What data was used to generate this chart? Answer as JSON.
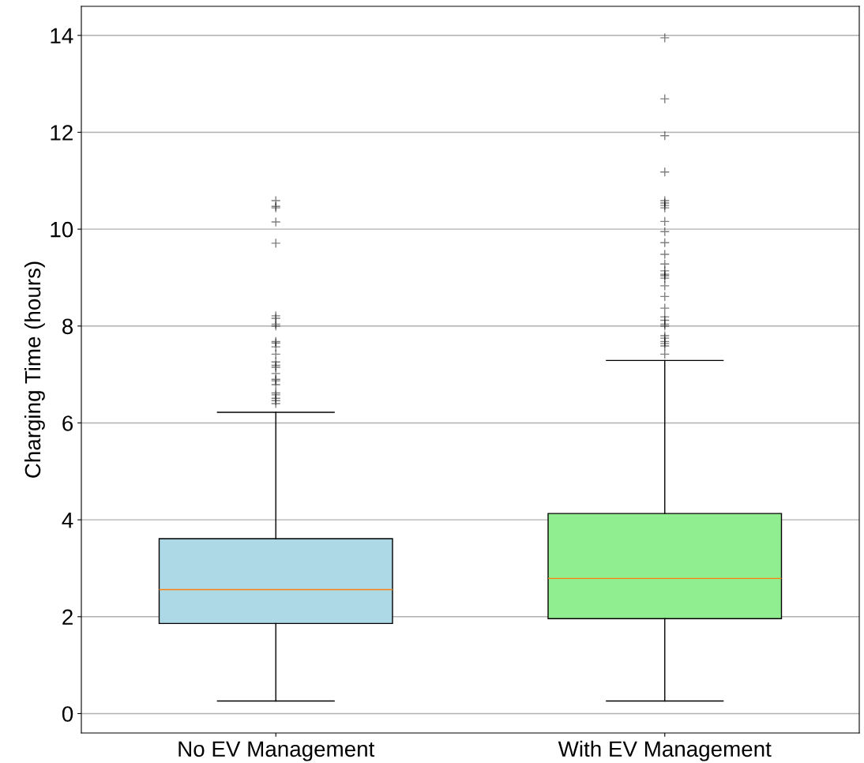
{
  "chart_data": {
    "type": "box",
    "ylabel": "Charging Time (hours)",
    "categories": [
      "No EV Management",
      "With EV Management"
    ],
    "colors": [
      "#add8e6",
      "#90ee90"
    ],
    "boxes": [
      {
        "low": 0.26,
        "q1": 1.86,
        "median": 2.56,
        "q3": 3.61,
        "high": 6.22,
        "outliers": [
          10.59,
          10.47,
          10.44,
          10.15,
          9.71,
          8.21,
          8.16,
          8.04,
          8.0,
          7.68,
          7.65,
          7.57,
          7.42,
          7.26,
          7.19,
          7.15,
          7.02,
          6.9,
          6.87,
          6.79,
          6.62,
          6.58,
          6.51,
          6.46,
          6.4
        ]
      },
      {
        "low": 0.26,
        "q1": 1.96,
        "median": 2.79,
        "q3": 4.13,
        "high": 7.29,
        "outliers": [
          13.95,
          12.69,
          11.93,
          11.18,
          10.59,
          10.54,
          10.49,
          10.44,
          10.16,
          9.95,
          9.72,
          9.48,
          9.28,
          9.14,
          9.07,
          9.04,
          8.99,
          8.83,
          8.61,
          8.37,
          8.19,
          8.12,
          8.04,
          8.0,
          7.8,
          7.75,
          7.68,
          7.64,
          7.59,
          7.42
        ]
      }
    ],
    "ylim": [
      -0.4,
      14.6
    ],
    "yticks": [
      0,
      2,
      4,
      6,
      8,
      10,
      12,
      14
    ],
    "grid": "y",
    "marker": "cross"
  }
}
